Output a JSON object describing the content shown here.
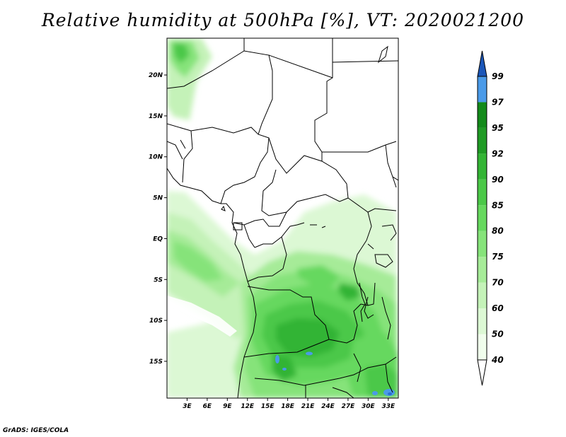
{
  "title": "Relative humidity at 500hPa [%], VT: 2020021200",
  "credit": "GrADS: IGES/COLA",
  "map": {
    "lon_range": [
      0,
      34.5
    ],
    "lat_range": [
      -19.5,
      24.5
    ],
    "lat_ticks": [
      {
        "value": 20,
        "label": "20N"
      },
      {
        "value": 15,
        "label": "15N"
      },
      {
        "value": 10,
        "label": "10N"
      },
      {
        "value": 5,
        "label": "5N"
      },
      {
        "value": 0,
        "label": "EQ"
      },
      {
        "value": -5,
        "label": "5S"
      },
      {
        "value": -10,
        "label": "10S"
      },
      {
        "value": -15,
        "label": "15S"
      }
    ],
    "lon_ticks": [
      {
        "value": 3,
        "label": "3E"
      },
      {
        "value": 6,
        "label": "6E"
      },
      {
        "value": 9,
        "label": "9E"
      },
      {
        "value": 12,
        "label": "12E"
      },
      {
        "value": 15,
        "label": "15E"
      },
      {
        "value": 18,
        "label": "18E"
      },
      {
        "value": 21,
        "label": "21E"
      },
      {
        "value": 24,
        "label": "24E"
      },
      {
        "value": 27,
        "label": "27E"
      },
      {
        "value": 30,
        "label": "30E"
      },
      {
        "value": 33,
        "label": "33E"
      }
    ]
  },
  "colorbar": {
    "levels": [
      {
        "label": "40",
        "color": "#f0fdec"
      },
      {
        "label": "50",
        "color": "#dcf8d4"
      },
      {
        "label": "60",
        "color": "#c4f2b8"
      },
      {
        "label": "70",
        "color": "#a6eb98"
      },
      {
        "label": "75",
        "color": "#86e37a"
      },
      {
        "label": "80",
        "color": "#66d85e"
      },
      {
        "label": "85",
        "color": "#4bc848"
      },
      {
        "label": "90",
        "color": "#33b434"
      },
      {
        "label": "92",
        "color": "#1f9a24"
      },
      {
        "label": "95",
        "color": "#138a1a"
      },
      {
        "label": "97",
        "color": "#4a9ae8"
      },
      {
        "label": "99",
        "color": "#2a6fcf"
      }
    ],
    "top_color": "#1b56b8",
    "bottom_color": "#ffffff"
  }
}
